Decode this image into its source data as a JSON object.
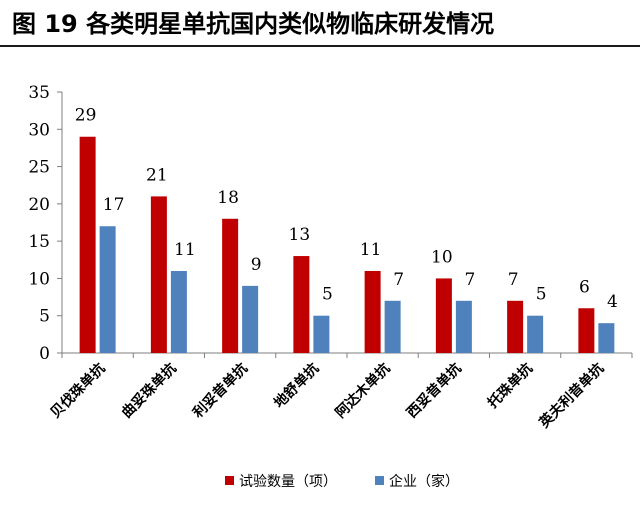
{
  "page": {
    "title": "图 19 各类明星单抗国内类似物临床研发情况"
  },
  "chart_data": {
    "type": "bar",
    "categories": [
      "贝伐珠单抗",
      "曲妥珠单抗",
      "利妥昔单抗",
      "地舒单抗",
      "阿达木单抗",
      "西妥昔单抗",
      "托珠单抗",
      "英夫利昔单抗"
    ],
    "series": [
      {
        "name": "试验数量（项）",
        "color": "#C00000",
        "values": [
          29,
          21,
          18,
          13,
          11,
          10,
          7,
          6
        ]
      },
      {
        "name": "企业（家）",
        "color": "#4F81BD",
        "values": [
          17,
          11,
          9,
          5,
          7,
          7,
          5,
          4
        ]
      }
    ],
    "yticks": [
      "0",
      "5",
      "10",
      "15",
      "20",
      "25",
      "30",
      "35"
    ],
    "ylim": [
      0,
      35
    ],
    "grid": false,
    "legend_position": "bottom"
  }
}
